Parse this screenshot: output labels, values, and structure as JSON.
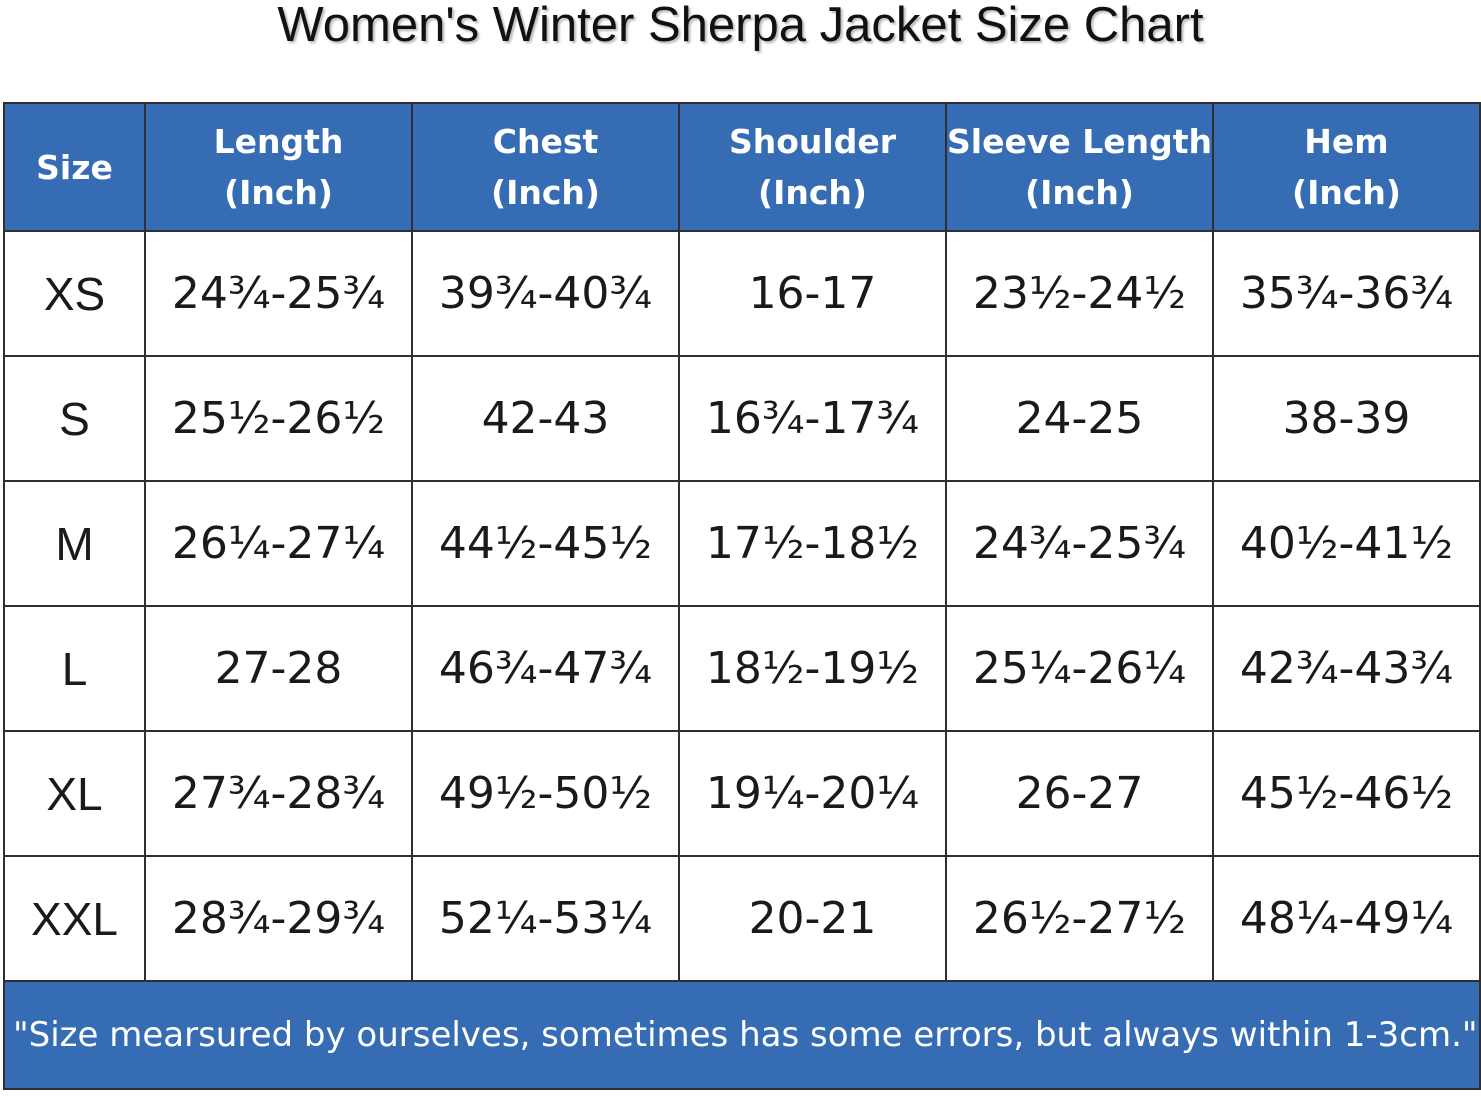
{
  "title": "Women's Winter Sherpa Jacket Size Chart",
  "colors": {
    "header_bg": "#356cb3",
    "header_text": "#ffffff",
    "border": "#2f2f2f"
  },
  "table": {
    "headers": [
      {
        "line1": "Size",
        "line2": ""
      },
      {
        "line1": "Length",
        "line2": "(Inch)"
      },
      {
        "line1": "Chest",
        "line2": "(Inch)"
      },
      {
        "line1": "Shoulder",
        "line2": "(Inch)"
      },
      {
        "line1": "Sleeve Length",
        "line2": "(Inch)"
      },
      {
        "line1": "Hem",
        "line2": "(Inch)"
      }
    ],
    "rows": [
      [
        "XS",
        "24¾-25¾",
        "39¾-40¾",
        "16-17",
        "23½-24½",
        "35¾-36¾"
      ],
      [
        "S",
        "25½-26½",
        "42-43",
        "16¾-17¾",
        "24-25",
        "38-39"
      ],
      [
        "M",
        "26¼-27¼",
        "44½-45½",
        "17½-18½",
        "24¾-25¾",
        "40½-41½"
      ],
      [
        "L",
        "27-28",
        "46¾-47¾",
        "18½-19½",
        "25¼-26¼",
        "42¾-43¾"
      ],
      [
        "XL",
        "27¾-28¾",
        "49½-50½",
        "19¼-20¼",
        "26-27",
        "45½-46½"
      ],
      [
        "XXL",
        "28¾-29¾",
        "52¼-53¼",
        "20-21",
        "26½-27½",
        "48¼-49¼"
      ]
    ],
    "footer_note": "\"Size mearsured by ourselves, sometimes has some errors, but always within 1-3cm.\""
  }
}
